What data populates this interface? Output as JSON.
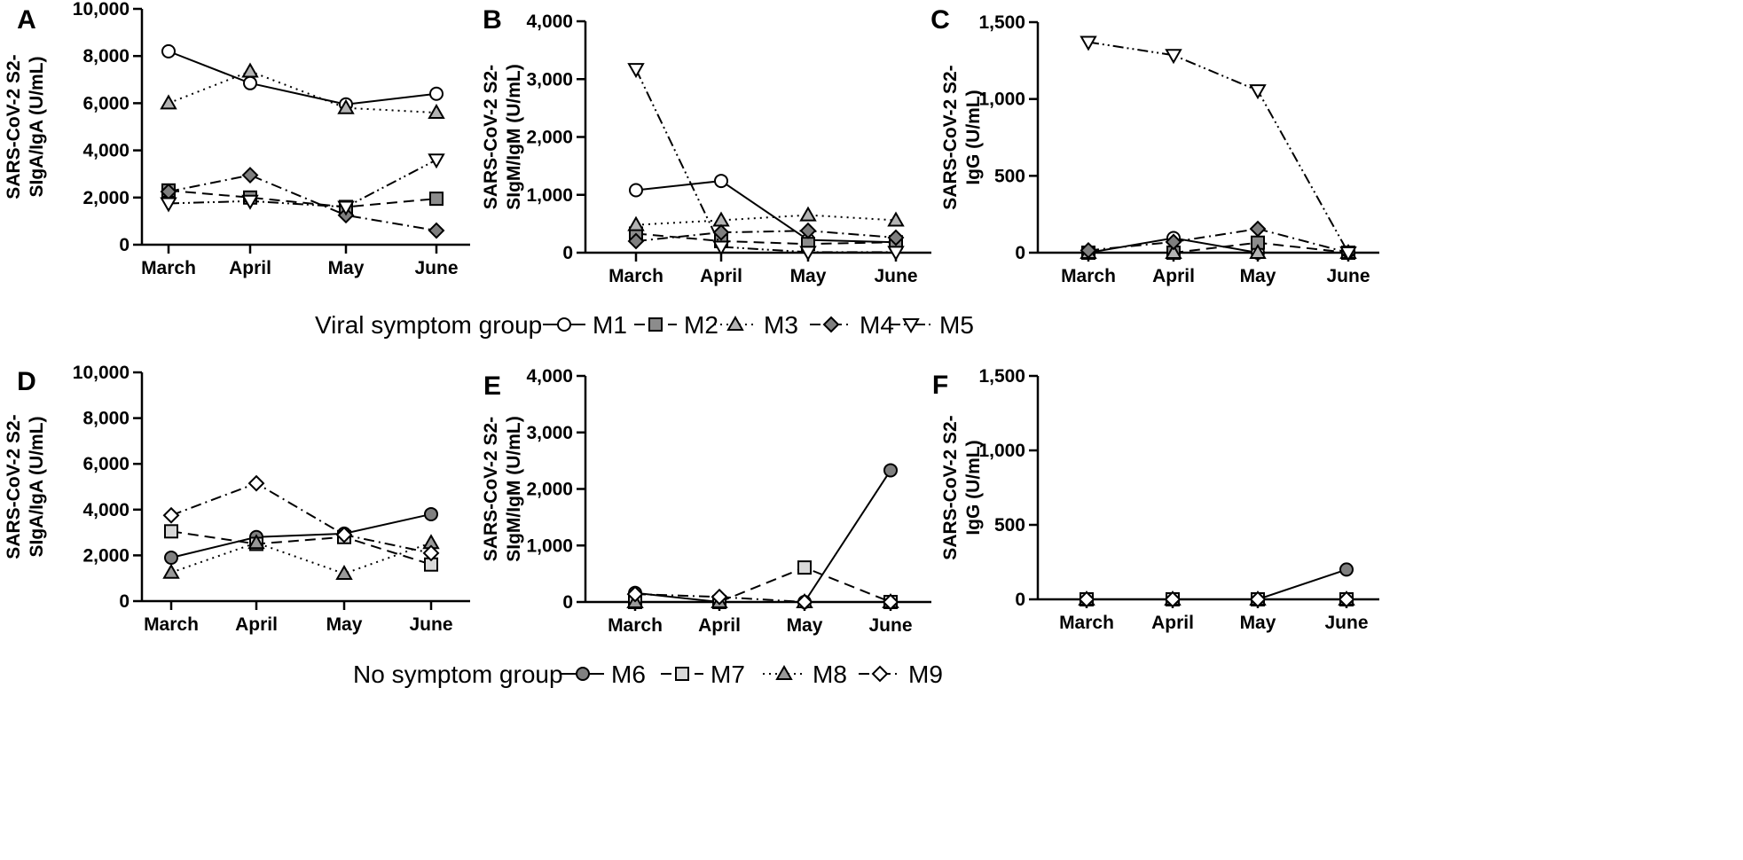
{
  "chart_data": [
    {
      "panel": "A",
      "type": "line",
      "categories": [
        "March",
        "April",
        "May",
        "June"
      ],
      "ylabel": [
        "SARS-CoV-2 S2-",
        "SIgA/IgA (U/mL)"
      ],
      "ylim": [
        0,
        10000
      ],
      "yticks": [
        {
          "v": 0,
          "t": "0"
        },
        {
          "v": 2000,
          "t": "2,000"
        },
        {
          "v": 4000,
          "t": "4,000"
        },
        {
          "v": 6000,
          "t": "6,000"
        },
        {
          "v": 8000,
          "t": "8,000"
        },
        {
          "v": 10000,
          "t": "10,000"
        }
      ],
      "series": [
        {
          "name": "M1",
          "values": [
            8200,
            6850,
            5950,
            6400
          ]
        },
        {
          "name": "M2",
          "values": [
            2300,
            2000,
            1600,
            1950
          ]
        },
        {
          "name": "M3",
          "values": [
            6000,
            7350,
            5800,
            5600
          ]
        },
        {
          "name": "M4",
          "values": [
            2250,
            2950,
            1250,
            600
          ]
        },
        {
          "name": "M5",
          "values": [
            1750,
            1850,
            1600,
            3600
          ]
        }
      ]
    },
    {
      "panel": "B",
      "type": "line",
      "categories": [
        "March",
        "April",
        "May",
        "June"
      ],
      "ylabel": [
        "SARS-CoV-2 S2-",
        "SIgM/IgM (U/mL)"
      ],
      "ylim": [
        0,
        4000
      ],
      "yticks": [
        {
          "v": 0,
          "t": "0"
        },
        {
          "v": 1000,
          "t": "1,000"
        },
        {
          "v": 2000,
          "t": "2,000"
        },
        {
          "v": 3000,
          "t": "3,000"
        },
        {
          "v": 4000,
          "t": "4,000"
        }
      ],
      "series": [
        {
          "name": "M1",
          "values": [
            1080,
            1240,
            220,
            180
          ]
        },
        {
          "name": "M2",
          "values": [
            330,
            200,
            150,
            180
          ]
        },
        {
          "name": "M3",
          "values": [
            480,
            560,
            650,
            560
          ]
        },
        {
          "name": "M4",
          "values": [
            200,
            350,
            380,
            260
          ]
        },
        {
          "name": "M5",
          "values": [
            3170,
            100,
            10,
            10
          ]
        }
      ]
    },
    {
      "panel": "C",
      "type": "line",
      "categories": [
        "March",
        "April",
        "May",
        "June"
      ],
      "ylabel": [
        "SARS-CoV-2 S2-",
        "IgG (U/mL)"
      ],
      "ylim": [
        0,
        1500
      ],
      "yticks": [
        {
          "v": 0,
          "t": "0"
        },
        {
          "v": 500,
          "t": "500"
        },
        {
          "v": 1000,
          "t": "1,000"
        },
        {
          "v": 1500,
          "t": "1,500"
        }
      ],
      "series": [
        {
          "name": "M1",
          "values": [
            0,
            95,
            0,
            0
          ]
        },
        {
          "name": "M2",
          "values": [
            0,
            0,
            65,
            0
          ]
        },
        {
          "name": "M3",
          "values": [
            0,
            0,
            0,
            0
          ]
        },
        {
          "name": "M4",
          "values": [
            15,
            70,
            155,
            0
          ]
        },
        {
          "name": "M5",
          "values": [
            1370,
            1285,
            1055,
            0
          ]
        }
      ]
    },
    {
      "panel": "D",
      "type": "line",
      "categories": [
        "March",
        "April",
        "May",
        "June"
      ],
      "ylabel": [
        "SARS-CoV-2 S2-",
        "SIgA/IgA (U/mL)"
      ],
      "ylim": [
        0,
        10000
      ],
      "yticks": [
        {
          "v": 0,
          "t": "0"
        },
        {
          "v": 2000,
          "t": "2,000"
        },
        {
          "v": 4000,
          "t": "4,000"
        },
        {
          "v": 6000,
          "t": "6,000"
        },
        {
          "v": 8000,
          "t": "8,000"
        },
        {
          "v": 10000,
          "t": "10,000"
        }
      ],
      "series": [
        {
          "name": "M6",
          "values": [
            1900,
            2800,
            2950,
            3800
          ]
        },
        {
          "name": "M7",
          "values": [
            3050,
            2500,
            2800,
            1600
          ]
        },
        {
          "name": "M8",
          "values": [
            1250,
            2550,
            1200,
            2550
          ]
        },
        {
          "name": "M9",
          "values": [
            3750,
            5150,
            2900,
            2100
          ]
        }
      ]
    },
    {
      "panel": "E",
      "type": "line",
      "categories": [
        "March",
        "April",
        "May",
        "June"
      ],
      "ylabel": [
        "SARS-CoV-2 S2-",
        "SIgM/IgM (U/mL)"
      ],
      "ylim": [
        0,
        4000
      ],
      "yticks": [
        {
          "v": 0,
          "t": "0"
        },
        {
          "v": 1000,
          "t": "1,000"
        },
        {
          "v": 2000,
          "t": "2,000"
        },
        {
          "v": 3000,
          "t": "3,000"
        },
        {
          "v": 4000,
          "t": "4,000"
        }
      ],
      "series": [
        {
          "name": "M6",
          "values": [
            160,
            0,
            0,
            2330
          ]
        },
        {
          "name": "M7",
          "values": [
            0,
            0,
            610,
            0
          ]
        },
        {
          "name": "M8",
          "values": [
            0,
            0,
            0,
            0
          ]
        },
        {
          "name": "M9",
          "values": [
            140,
            90,
            0,
            0
          ]
        }
      ]
    },
    {
      "panel": "F",
      "type": "line",
      "categories": [
        "March",
        "April",
        "May",
        "June"
      ],
      "ylabel": [
        "SARS-CoV-2 S2-",
        "IgG (U/mL)"
      ],
      "ylim": [
        0,
        1500
      ],
      "yticks": [
        {
          "v": 0,
          "t": "0"
        },
        {
          "v": 500,
          "t": "500"
        },
        {
          "v": 1000,
          "t": "1,000"
        },
        {
          "v": 1500,
          "t": "1,500"
        }
      ],
      "series": [
        {
          "name": "M6",
          "values": [
            0,
            0,
            0,
            200
          ]
        },
        {
          "name": "M7",
          "values": [
            0,
            0,
            0,
            0
          ]
        },
        {
          "name": "M8",
          "values": [
            0,
            0,
            0,
            0
          ]
        },
        {
          "name": "M9",
          "values": [
            0,
            0,
            0,
            0
          ]
        }
      ]
    }
  ],
  "styles": {
    "M1": {
      "marker": "circle",
      "fill": "#ffffff",
      "dash": "solid"
    },
    "M2": {
      "marker": "square",
      "fill": "#8c8c8c",
      "dash": "dash"
    },
    "M3": {
      "marker": "triangle-up",
      "fill": "#b3b3b3",
      "dash": "dot"
    },
    "M4": {
      "marker": "diamond",
      "fill": "#7f7f7f",
      "dash": "dashdot"
    },
    "M5": {
      "marker": "triangle-down",
      "fill": "#ffffff",
      "dash": "dashdotdot"
    },
    "M6": {
      "marker": "circle",
      "fill": "#808080",
      "dash": "solid"
    },
    "M7": {
      "marker": "square",
      "fill": "#d9d9d9",
      "dash": "dash"
    },
    "M8": {
      "marker": "triangle-up",
      "fill": "#999999",
      "dash": "dot"
    },
    "M9": {
      "marker": "diamond",
      "fill": "#ffffff",
      "dash": "dashdot"
    }
  },
  "legends": [
    {
      "title": "Viral symptom group",
      "items": [
        "M1",
        "M2",
        "M3",
        "M4",
        "M5"
      ]
    },
    {
      "title": "No symptom group",
      "items": [
        "M6",
        "M7",
        "M8",
        "M9"
      ]
    }
  ]
}
